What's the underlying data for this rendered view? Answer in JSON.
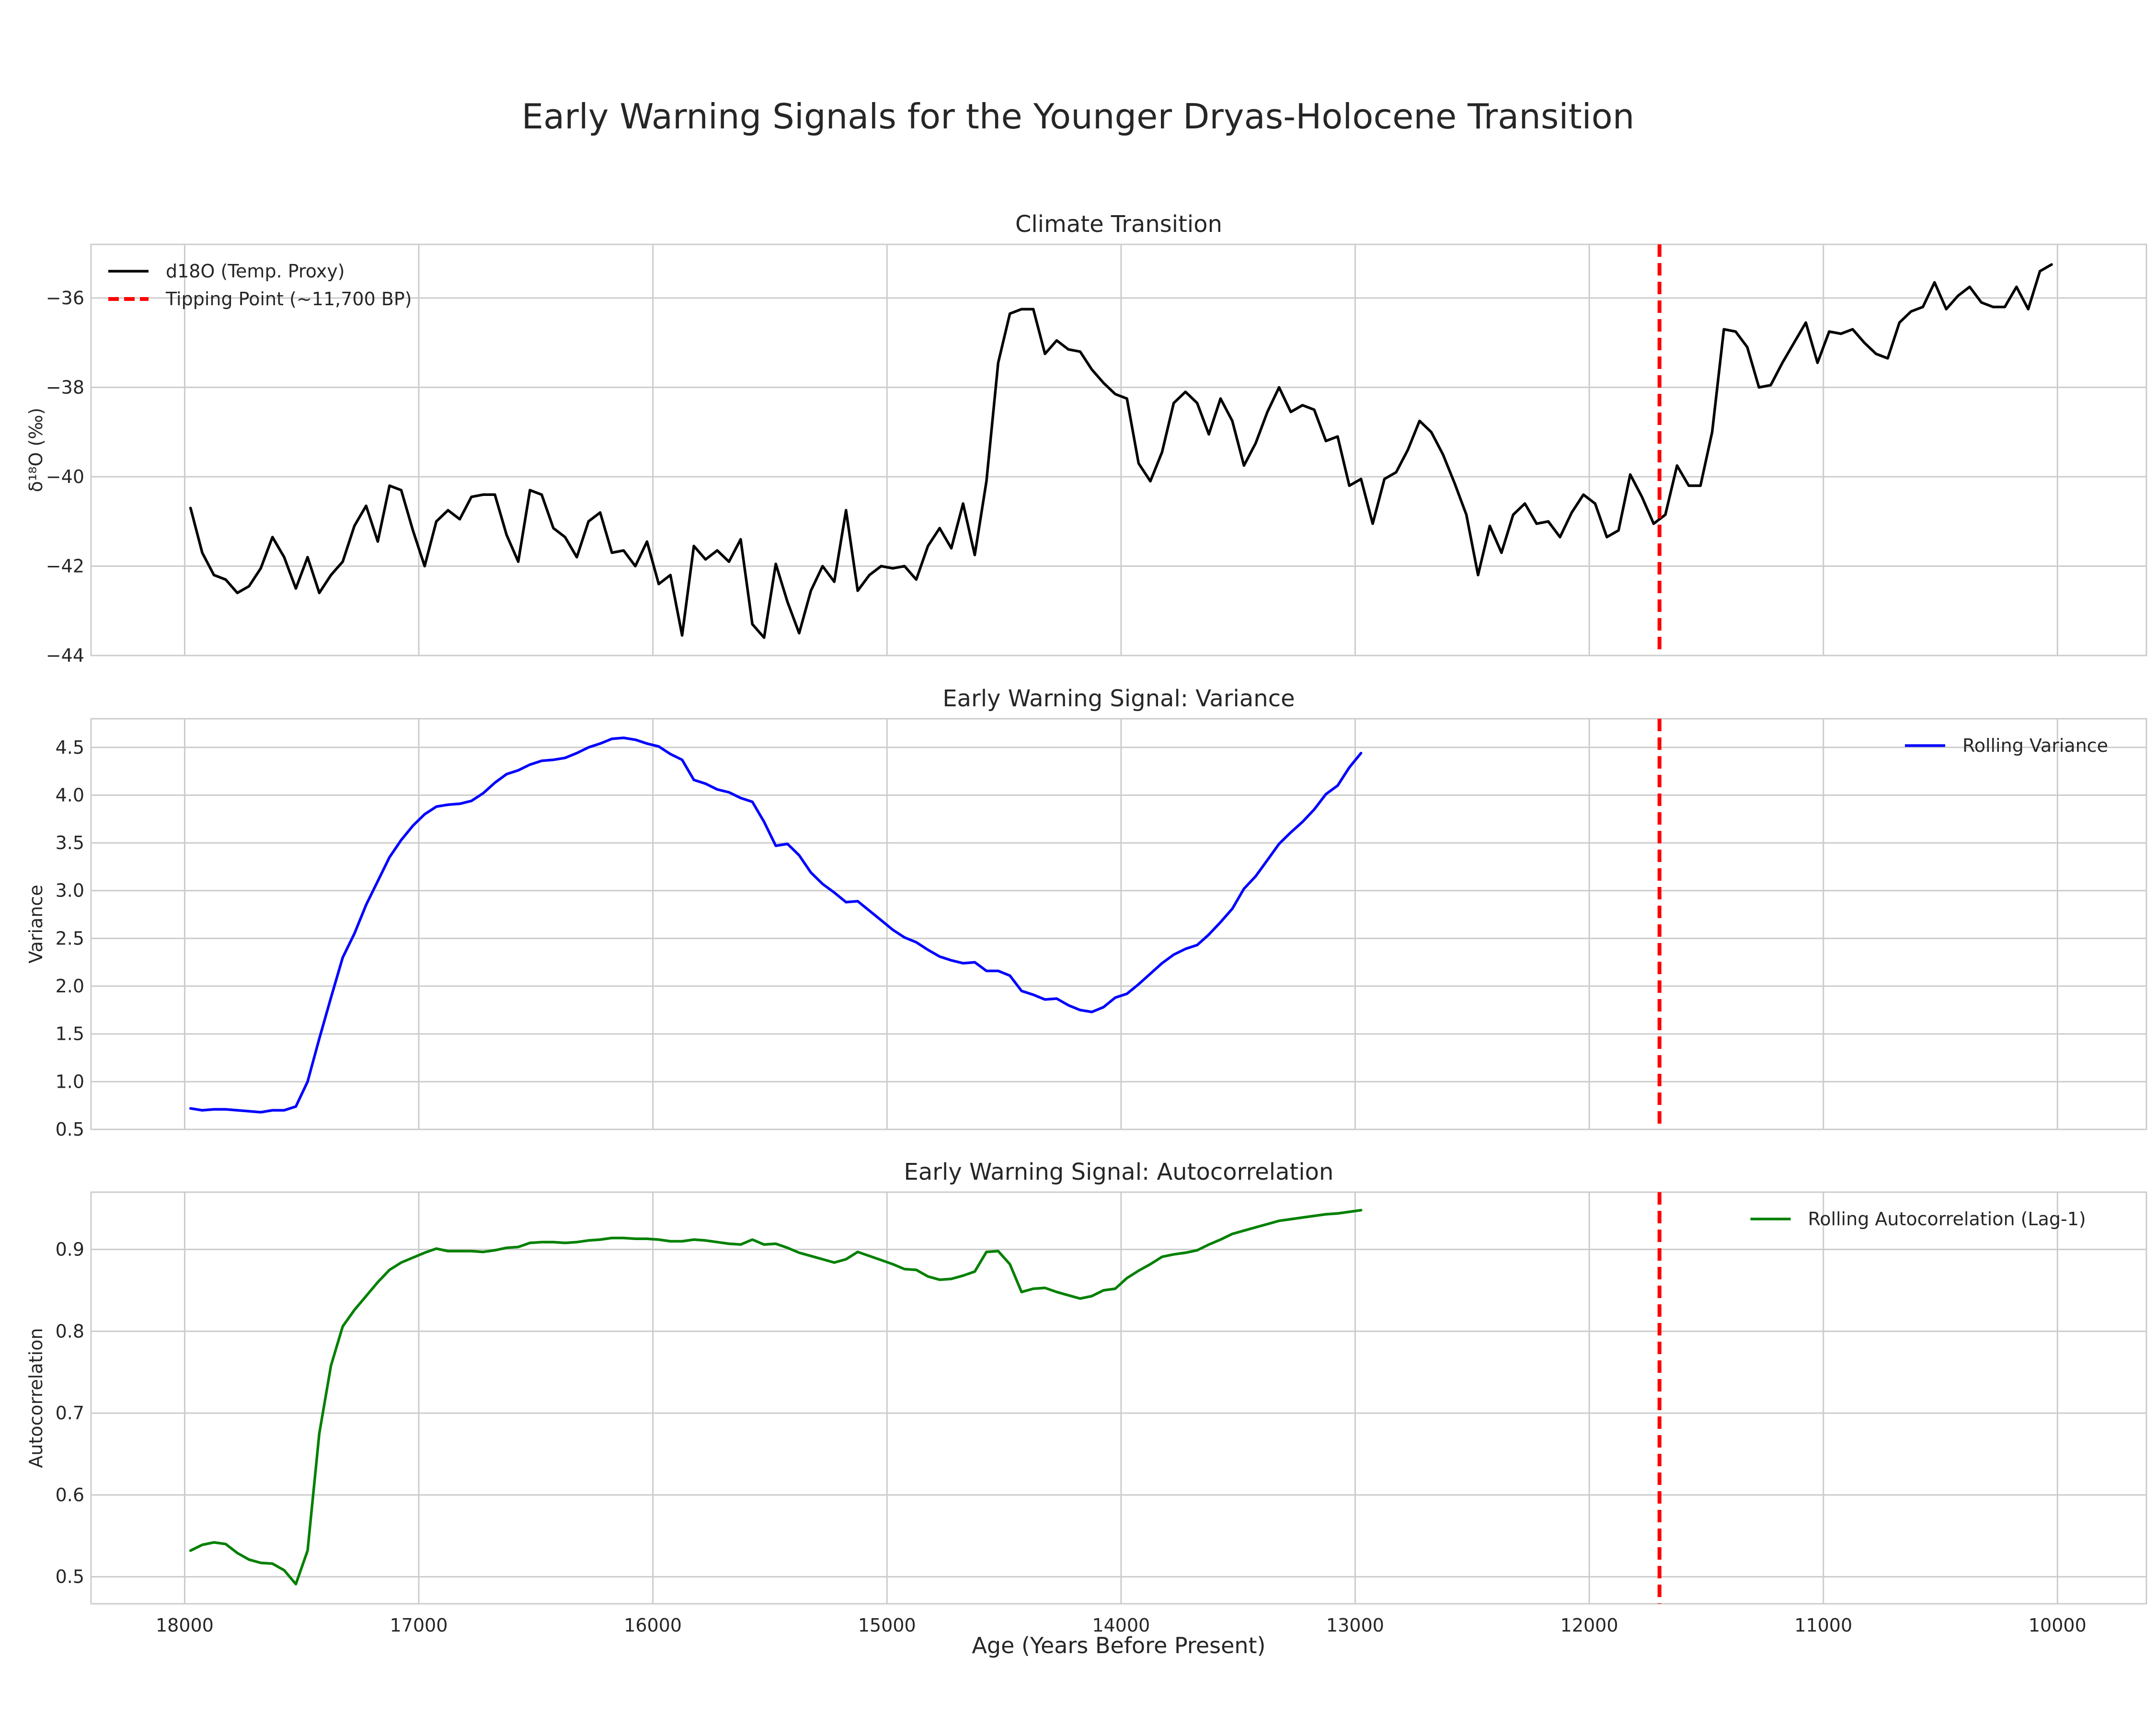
{
  "figure": {
    "title": "Early Warning Signals for the Younger Dryas-Holocene Transition",
    "xlabel": "Age (Years Before Present)"
  },
  "chart_data": [
    {
      "type": "line",
      "title": "Climate Transition",
      "ylabel": "δ¹⁸O (‰)",
      "xlim": [
        18400,
        9620
      ],
      "ylim": [
        -44,
        -34.8
      ],
      "yticks": [
        -44,
        -42,
        -40,
        -38,
        -36
      ],
      "ytick_labels": [
        "−44",
        "−42",
        "−40",
        "−38",
        "−36"
      ],
      "legend_loc": "upper-left",
      "grid": true,
      "series": [
        {
          "name": "d18O (Temp. Proxy)",
          "color": "#000000",
          "x": [
            17975,
            17925,
            17875,
            17825,
            17775,
            17725,
            17675,
            17625,
            17575,
            17525,
            17475,
            17425,
            17375,
            17325,
            17275,
            17225,
            17175,
            17125,
            17075,
            17025,
            16975,
            16925,
            16875,
            16825,
            16775,
            16725,
            16675,
            16625,
            16575,
            16525,
            16475,
            16425,
            16375,
            16325,
            16275,
            16225,
            16175,
            16125,
            16075,
            16025,
            15975,
            15925,
            15875,
            15825,
            15775,
            15725,
            15675,
            15625,
            15575,
            15525,
            15475,
            15425,
            15375,
            15325,
            15275,
            15225,
            15175,
            15125,
            15075,
            15025,
            14975,
            14925,
            14875,
            14825,
            14775,
            14725,
            14675,
            14625,
            14575,
            14525,
            14475,
            14425,
            14375,
            14325,
            14275,
            14225,
            14175,
            14125,
            14075,
            14025,
            13975,
            13925,
            13875,
            13825,
            13775,
            13725,
            13675,
            13625,
            13575,
            13525,
            13475,
            13425,
            13375,
            13325,
            13275,
            13225,
            13175,
            13125,
            13075,
            13025,
            12975,
            12925,
            12875,
            12825,
            12775,
            12725,
            12675,
            12625,
            12575,
            12525,
            12475,
            12425,
            12375,
            12325,
            12275,
            12225,
            12175,
            12125,
            12075,
            12025,
            11975,
            11925,
            11875,
            11825,
            11775,
            11725,
            11675,
            11625,
            11575,
            11525,
            11475,
            11425,
            11375,
            11325,
            11275,
            11225,
            11175,
            11125,
            11075,
            11025,
            10975,
            10925,
            10875,
            10825,
            10775,
            10725,
            10675,
            10625,
            10575,
            10525,
            10475,
            10425,
            10375,
            10325,
            10275,
            10225,
            10175,
            10125,
            10075,
            10025
          ],
          "y": [
            -40.7,
            -41.7,
            -42.2,
            -42.3,
            -42.6,
            -42.45,
            -42.05,
            -41.35,
            -41.8,
            -42.5,
            -41.8,
            -42.6,
            -42.2,
            -41.9,
            -41.1,
            -40.65,
            -41.45,
            -40.2,
            -40.3,
            -41.2,
            -42.0,
            -41.0,
            -40.75,
            -40.95,
            -40.45,
            -40.4,
            -40.4,
            -41.3,
            -41.9,
            -40.3,
            -40.4,
            -41.15,
            -41.35,
            -41.8,
            -41.0,
            -40.8,
            -41.7,
            -41.65,
            -42.0,
            -41.45,
            -42.4,
            -42.2,
            -43.55,
            -41.55,
            -41.85,
            -41.65,
            -41.9,
            -41.4,
            -43.3,
            -43.6,
            -41.95,
            -42.8,
            -43.5,
            -42.55,
            -42.0,
            -42.35,
            -40.75,
            -42.55,
            -42.2,
            -42.0,
            -42.05,
            -42.0,
            -42.3,
            -41.55,
            -41.15,
            -41.6,
            -40.6,
            -41.75,
            -40.1,
            -37.45,
            -36.35,
            -36.25,
            -36.25,
            -37.25,
            -36.95,
            -37.15,
            -37.2,
            -37.6,
            -37.9,
            -38.15,
            -38.25,
            -39.7,
            -40.1,
            -39.45,
            -38.35,
            -38.1,
            -38.35,
            -39.05,
            -38.25,
            -38.75,
            -39.75,
            -39.25,
            -38.55,
            -38.0,
            -38.55,
            -38.4,
            -38.5,
            -39.2,
            -39.1,
            -40.2,
            -40.05,
            -41.05,
            -40.05,
            -39.9,
            -39.4,
            -38.75,
            -39.0,
            -39.5,
            -40.15,
            -40.85,
            -42.2,
            -41.1,
            -41.7,
            -40.85,
            -40.6,
            -41.05,
            -41.0,
            -41.35,
            -40.8,
            -40.4,
            -40.6,
            -41.35,
            -41.2,
            -39.95,
            -40.45,
            -41.05,
            -40.85,
            -39.75,
            -40.2,
            -40.2,
            -39.0,
            -36.7,
            -36.75,
            -37.1,
            -38.0,
            -37.95,
            -37.45,
            -37.0,
            -36.55,
            -37.45,
            -36.75,
            -36.8,
            -36.7,
            -37.0,
            -37.25,
            -37.35,
            -36.55,
            -36.3,
            -36.2,
            -35.65,
            -36.25,
            -35.95,
            -35.75,
            -36.1,
            -36.2,
            -36.2,
            -35.75,
            -36.25,
            -35.4,
            -35.25
          ]
        },
        {
          "name": "Tipping Point (~11,700 BP)",
          "color": "#ff0000",
          "type": "vline",
          "x": 11700
        }
      ]
    },
    {
      "type": "line",
      "title": "Early Warning Signal: Variance",
      "ylabel": "Variance",
      "xlim": [
        18400,
        9620
      ],
      "ylim": [
        0.5,
        4.8
      ],
      "yticks": [
        0.5,
        1.0,
        1.5,
        2.0,
        2.5,
        3.0,
        3.5,
        4.0,
        4.5
      ],
      "ytick_labels": [
        "0.5",
        "1.0",
        "1.5",
        "2.0",
        "2.5",
        "3.0",
        "3.5",
        "4.0",
        "4.5"
      ],
      "legend_loc": "upper-right",
      "grid": true,
      "series": [
        {
          "name": "Rolling Variance",
          "color": "#0000ff",
          "x": [
            17975,
            17925,
            17875,
            17825,
            17775,
            17725,
            17675,
            17625,
            17575,
            17525,
            17475,
            17425,
            17375,
            17325,
            17275,
            17225,
            17175,
            17125,
            17075,
            17025,
            16975,
            16925,
            16875,
            16825,
            16775,
            16725,
            16675,
            16625,
            16575,
            16525,
            16475,
            16425,
            16375,
            16325,
            16275,
            16225,
            16175,
            16125,
            16075,
            16025,
            15975,
            15925,
            15875,
            15825,
            15775,
            15725,
            15675,
            15625,
            15575,
            15525,
            15475,
            15425,
            15375,
            15325,
            15275,
            15225,
            15175,
            15125,
            15075,
            15025,
            14975,
            14925,
            14875,
            14825,
            14775,
            14725,
            14675,
            14625,
            14575,
            14525,
            14475,
            14425,
            14375,
            14325,
            14275,
            14225,
            14175,
            14125,
            14075,
            14025,
            13975,
            13925,
            13875,
            13825,
            13775,
            13725,
            13675,
            13625,
            13575,
            13525,
            13475,
            13425,
            13375,
            13325,
            13275,
            13225,
            13175,
            13125,
            13075,
            13025,
            12975
          ],
          "y": [
            0.72,
            0.7,
            0.71,
            0.71,
            0.7,
            0.69,
            0.68,
            0.7,
            0.7,
            0.74,
            1.0,
            1.45,
            1.88,
            2.3,
            2.55,
            2.85,
            3.1,
            3.35,
            3.53,
            3.68,
            3.8,
            3.88,
            3.9,
            3.91,
            3.94,
            4.02,
            4.13,
            4.22,
            4.26,
            4.32,
            4.36,
            4.37,
            4.39,
            4.44,
            4.5,
            4.54,
            4.59,
            4.6,
            4.58,
            4.54,
            4.51,
            4.43,
            4.37,
            4.16,
            4.12,
            4.06,
            4.03,
            3.97,
            3.93,
            3.72,
            3.47,
            3.49,
            3.37,
            3.19,
            3.07,
            2.98,
            2.88,
            2.89,
            2.79,
            2.69,
            2.59,
            2.51,
            2.46,
            2.38,
            2.31,
            2.27,
            2.24,
            2.25,
            2.16,
            2.16,
            2.11,
            1.95,
            1.91,
            1.86,
            1.87,
            1.8,
            1.75,
            1.73,
            1.78,
            1.88,
            1.92,
            2.02,
            2.13,
            2.24,
            2.33,
            2.39,
            2.43,
            2.54,
            2.67,
            2.81,
            3.02,
            3.15,
            3.32,
            3.49,
            3.61,
            3.72,
            3.85,
            4.01,
            4.1,
            4.29,
            4.44
          ]
        },
        {
          "name": "",
          "color": "#ff0000",
          "type": "vline",
          "x": 11700
        }
      ]
    },
    {
      "type": "line",
      "title": "Early Warning Signal: Autocorrelation",
      "ylabel": "Autocorrelation",
      "xlim": [
        18400,
        9620
      ],
      "ylim": [
        0.467,
        0.97
      ],
      "yticks": [
        0.5,
        0.6,
        0.7,
        0.8,
        0.9
      ],
      "ytick_labels": [
        "0.5",
        "0.6",
        "0.7",
        "0.8",
        "0.9"
      ],
      "xticks": [
        18000,
        17000,
        16000,
        15000,
        14000,
        13000,
        12000,
        11000,
        10000
      ],
      "xtick_labels": [
        "18000",
        "17000",
        "16000",
        "15000",
        "14000",
        "13000",
        "12000",
        "11000",
        "10000"
      ],
      "legend_loc": "upper-right",
      "grid": true,
      "series": [
        {
          "name": "Rolling Autocorrelation (Lag-1)",
          "color": "#008000",
          "x": [
            17975,
            17925,
            17875,
            17825,
            17775,
            17725,
            17675,
            17625,
            17575,
            17525,
            17475,
            17425,
            17375,
            17325,
            17275,
            17225,
            17175,
            17125,
            17075,
            17025,
            16975,
            16925,
            16875,
            16825,
            16775,
            16725,
            16675,
            16625,
            16575,
            16525,
            16475,
            16425,
            16375,
            16325,
            16275,
            16225,
            16175,
            16125,
            16075,
            16025,
            15975,
            15925,
            15875,
            15825,
            15775,
            15725,
            15675,
            15625,
            15575,
            15525,
            15475,
            15425,
            15375,
            15325,
            15275,
            15225,
            15175,
            15125,
            15075,
            15025,
            14975,
            14925,
            14875,
            14825,
            14775,
            14725,
            14675,
            14625,
            14575,
            14525,
            14475,
            14425,
            14375,
            14325,
            14275,
            14225,
            14175,
            14125,
            14075,
            14025,
            13975,
            13925,
            13875,
            13825,
            13775,
            13725,
            13675,
            13625,
            13575,
            13525,
            13475,
            13425,
            13375,
            13325,
            13275,
            13225,
            13175,
            13125,
            13075,
            13025,
            12975
          ],
          "y": [
            0.532,
            0.539,
            0.542,
            0.54,
            0.529,
            0.521,
            0.517,
            0.516,
            0.508,
            0.491,
            0.532,
            0.675,
            0.758,
            0.806,
            0.826,
            0.843,
            0.86,
            0.875,
            0.884,
            0.89,
            0.896,
            0.901,
            0.898,
            0.898,
            0.898,
            0.897,
            0.899,
            0.902,
            0.903,
            0.908,
            0.909,
            0.909,
            0.908,
            0.909,
            0.911,
            0.912,
            0.914,
            0.914,
            0.913,
            0.913,
            0.912,
            0.91,
            0.91,
            0.912,
            0.911,
            0.909,
            0.907,
            0.906,
            0.912,
            0.906,
            0.907,
            0.902,
            0.896,
            0.892,
            0.888,
            0.884,
            0.888,
            0.897,
            0.892,
            0.887,
            0.882,
            0.876,
            0.875,
            0.867,
            0.863,
            0.864,
            0.868,
            0.873,
            0.897,
            0.898,
            0.882,
            0.848,
            0.852,
            0.853,
            0.848,
            0.844,
            0.84,
            0.843,
            0.85,
            0.852,
            0.865,
            0.874,
            0.882,
            0.891,
            0.894,
            0.896,
            0.899,
            0.906,
            0.912,
            0.919,
            0.923,
            0.927,
            0.931,
            0.935,
            0.937,
            0.939,
            0.941,
            0.943,
            0.944,
            0.946,
            0.948
          ]
        },
        {
          "name": "",
          "color": "#ff0000",
          "type": "vline",
          "x": 11700
        }
      ]
    }
  ]
}
